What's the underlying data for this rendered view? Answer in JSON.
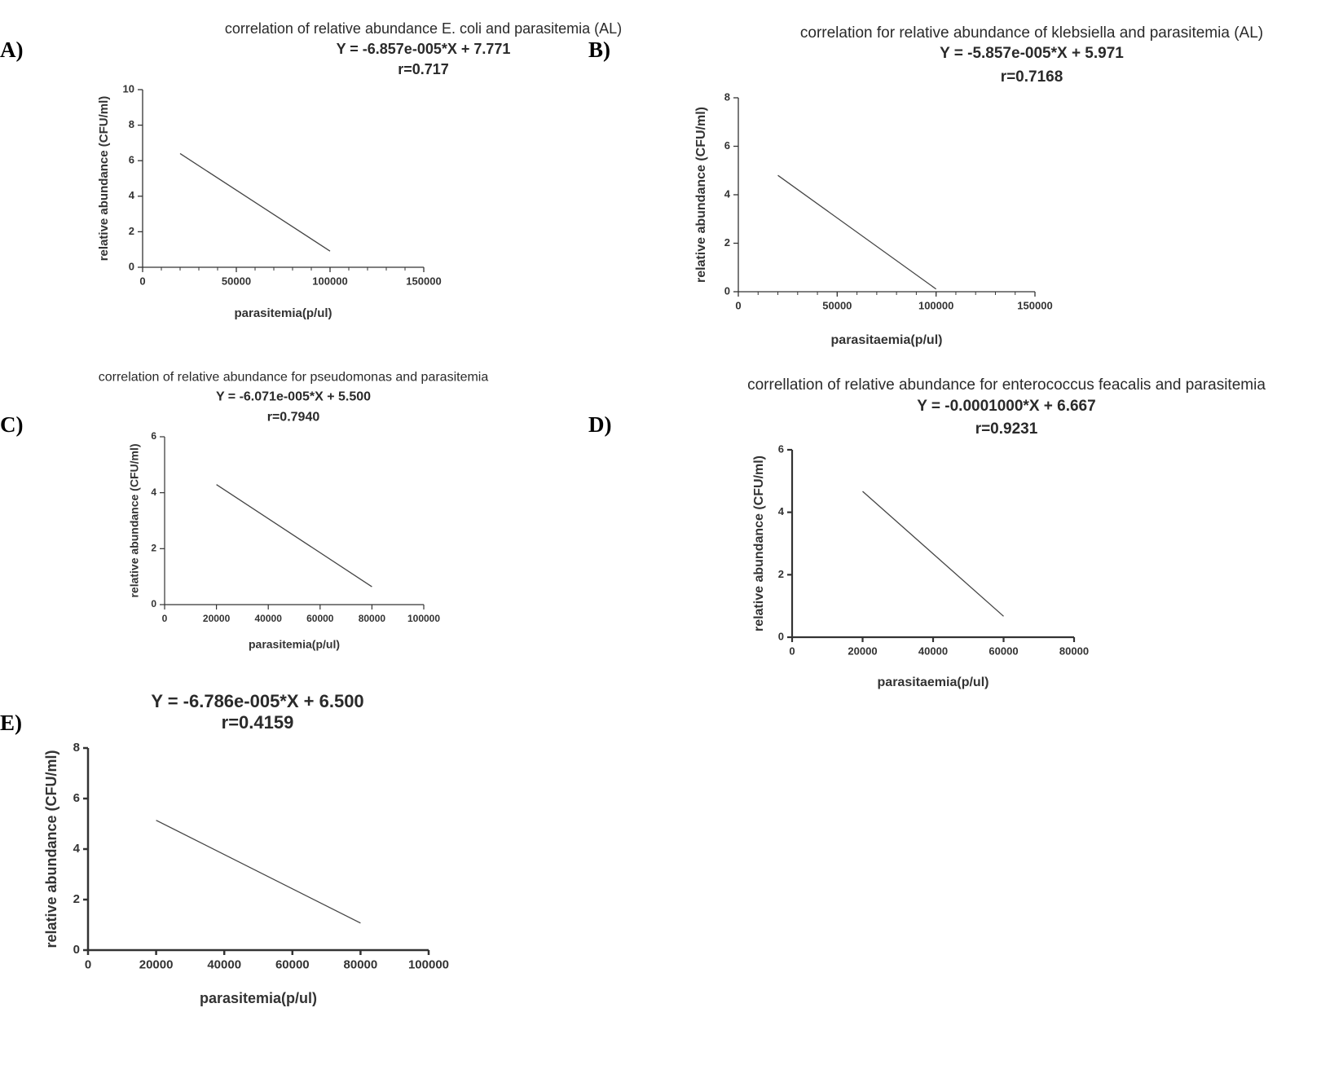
{
  "panels": [
    {
      "letter": "A)"
    },
    {
      "letter": "B)"
    },
    {
      "letter": "C)"
    },
    {
      "letter": "D)"
    },
    {
      "letter": "E)"
    }
  ],
  "chart_data": [
    {
      "type": "line",
      "title": "correlation of relative abundance  E. coli and parasitemia (AL)",
      "equation": "Y = -6.857e-005*X + 7.771",
      "r_label": "r=0.717",
      "xlabel": "parasitemia(p/ul)",
      "ylabel": "relative abundance (CFU/ml)",
      "xlim": [
        0,
        150000
      ],
      "ylim": [
        0,
        10
      ],
      "x_ticks": [
        0,
        50000,
        100000,
        150000
      ],
      "y_ticks": [
        0,
        2,
        4,
        6,
        8,
        10
      ],
      "series": [
        {
          "x": [
            20000,
            100000
          ],
          "y": [
            6.4,
            0.91
          ]
        }
      ],
      "line_color": "#444444"
    },
    {
      "type": "line",
      "title": "correlation for relative abundance of klebsiella and parasitemia (AL)",
      "equation": "Y = -5.857e-005*X + 5.971",
      "r_label": "r=0.7168",
      "xlabel": "parasitaemia(p/ul)",
      "ylabel": "relative abundance (CFU/ml)",
      "xlim": [
        0,
        150000
      ],
      "ylim": [
        0,
        8
      ],
      "x_ticks": [
        0,
        50000,
        100000,
        150000
      ],
      "y_ticks": [
        0,
        2,
        4,
        6,
        8
      ],
      "series": [
        {
          "x": [
            20000,
            100000
          ],
          "y": [
            4.8,
            0.11
          ]
        }
      ],
      "line_color": "#444444"
    },
    {
      "type": "line",
      "title": "correlation of relative abundance for pseudomonas and parasitemia",
      "equation": "Y = -6.071e-005*X + 5.500",
      "r_label": "r=0.7940",
      "xlabel": "parasitemia(p/ul)",
      "ylabel": "relative abundance (CFU/ml)",
      "xlim": [
        0,
        100000
      ],
      "ylim": [
        0,
        6
      ],
      "x_ticks": [
        0,
        20000,
        40000,
        60000,
        80000,
        100000
      ],
      "y_ticks": [
        0,
        2,
        4,
        6
      ],
      "series": [
        {
          "x": [
            20000,
            80000
          ],
          "y": [
            4.29,
            0.64
          ]
        }
      ],
      "line_color": "#444444"
    },
    {
      "type": "line",
      "title": "correllation of relative abundance for  enterococcus feacalis and parasitemia",
      "equation": "Y = -0.0001000*X + 6.667",
      "r_label": "r=0.9231",
      "xlabel": "parasitaemia(p/ul)",
      "ylabel": "relative abundance (CFU/ml)",
      "xlim": [
        0,
        80000
      ],
      "ylim": [
        0,
        6
      ],
      "x_ticks": [
        0,
        20000,
        40000,
        60000,
        80000
      ],
      "y_ticks": [
        0,
        2,
        4,
        6
      ],
      "series": [
        {
          "x": [
            20000,
            60000
          ],
          "y": [
            4.67,
            0.67
          ]
        }
      ],
      "line_color": "#444444"
    },
    {
      "type": "line",
      "title": "",
      "equation": "Y = -6.786e-005*X + 6.500",
      "r_label": "r=0.4159",
      "xlabel": "parasitemia(p/ul)",
      "ylabel": "relative abundance (CFU/ml)",
      "xlim": [
        0,
        100000
      ],
      "ylim": [
        0,
        8
      ],
      "x_ticks": [
        0,
        20000,
        40000,
        60000,
        80000,
        100000
      ],
      "y_ticks": [
        0,
        2,
        4,
        6,
        8
      ],
      "series": [
        {
          "x": [
            20000,
            80000
          ],
          "y": [
            5.14,
            1.07
          ]
        }
      ],
      "line_color": "#444444"
    }
  ]
}
